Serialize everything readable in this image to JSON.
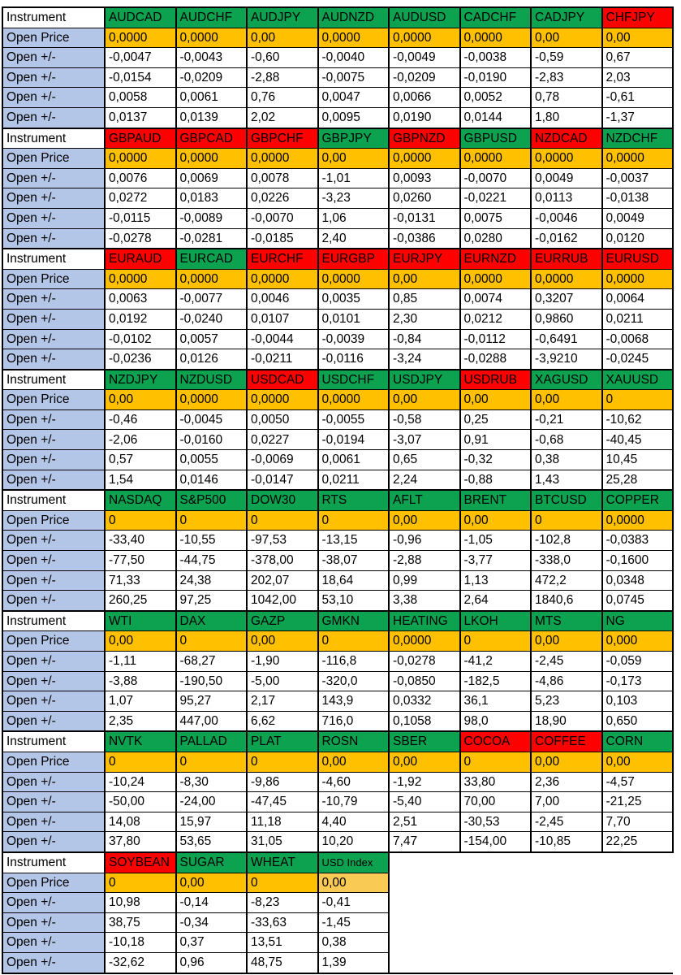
{
  "table": {
    "row_labels": {
      "instrument": "Instrument",
      "open_price": "Open Price",
      "open_delta": "Open +/-"
    },
    "colors": {
      "green": "#0CA24F",
      "red": "#FF0000",
      "orange": "#FFC000",
      "orange_light": "#F9CB55",
      "label_blue": "#B4C6E7"
    },
    "blocks": [
      {
        "instruments": [
          {
            "label": "AUDCAD",
            "color": "green"
          },
          {
            "label": "AUDCHF",
            "color": "green"
          },
          {
            "label": "AUDJPY",
            "color": "green"
          },
          {
            "label": "AUDNZD",
            "color": "green"
          },
          {
            "label": "AUDUSD",
            "color": "green"
          },
          {
            "label": "CADCHF",
            "color": "green"
          },
          {
            "label": "CADJPY",
            "color": "green"
          },
          {
            "label": "CHFJPY",
            "color": "red"
          }
        ],
        "open_price": [
          "0,0000",
          "0,0000",
          "0,00",
          "0,0000",
          "0,0000",
          "0,0000",
          "0,00",
          "0,00"
        ],
        "open_deltas": [
          [
            "-0,0047",
            "-0,0043",
            "-0,60",
            "-0,0040",
            "-0,0049",
            "-0,0038",
            "-0,59",
            "0,67"
          ],
          [
            "-0,0154",
            "-0,0209",
            "-2,88",
            "-0,0075",
            "-0,0209",
            "-0,0190",
            "-2,83",
            "2,03"
          ],
          [
            "0,0058",
            "0,0061",
            "0,76",
            "0,0047",
            "0,0066",
            "0,0052",
            "0,78",
            "-0,61"
          ],
          [
            "0,0137",
            "0,0139",
            "2,02",
            "0,0095",
            "0,0190",
            "0,0144",
            "1,80",
            "-1,37"
          ]
        ]
      },
      {
        "instruments": [
          {
            "label": "GBPAUD",
            "color": "red"
          },
          {
            "label": "GBPCAD",
            "color": "red"
          },
          {
            "label": "GBPCHF",
            "color": "red"
          },
          {
            "label": "GBPJPY",
            "color": "green"
          },
          {
            "label": "GBPNZD",
            "color": "red"
          },
          {
            "label": "GBPUSD",
            "color": "green"
          },
          {
            "label": "NZDCAD",
            "color": "red"
          },
          {
            "label": "NZDCHF",
            "color": "green"
          }
        ],
        "open_price": [
          "0,0000",
          "0,0000",
          "0,0000",
          "0,00",
          "0,0000",
          "0,0000",
          "0,0000",
          "0,0000"
        ],
        "open_deltas": [
          [
            "0,0076",
            "0,0069",
            "0,0078",
            "-1,01",
            "0,0093",
            "-0,0070",
            "0,0049",
            "-0,0037"
          ],
          [
            "0,0272",
            "0,0183",
            "0,0226",
            "-3,23",
            "0,0260",
            "-0,0221",
            "0,0113",
            "-0,0138"
          ],
          [
            "-0,0115",
            "-0,0089",
            "-0,0070",
            "1,06",
            "-0,0131",
            "0,0075",
            "-0,0046",
            "0,0049"
          ],
          [
            "-0,0278",
            "-0,0281",
            "-0,0185",
            "2,40",
            "-0,0386",
            "0,0280",
            "-0,0162",
            "0,0120"
          ]
        ]
      },
      {
        "instruments": [
          {
            "label": "EURAUD",
            "color": "red"
          },
          {
            "label": "EURCAD",
            "color": "green"
          },
          {
            "label": "EURCHF",
            "color": "red"
          },
          {
            "label": "EURGBP",
            "color": "red"
          },
          {
            "label": "EURJPY",
            "color": "red"
          },
          {
            "label": "EURNZD",
            "color": "red"
          },
          {
            "label": "EURRUB",
            "color": "red"
          },
          {
            "label": "EURUSD",
            "color": "red"
          }
        ],
        "open_price": [
          "0,0000",
          "0,0000",
          "0,0000",
          "0,0000",
          "0,00",
          "0,0000",
          "0,0000",
          "0,0000"
        ],
        "open_deltas": [
          [
            "0,0063",
            "-0,0077",
            "0,0046",
            "0,0035",
            "0,85",
            "0,0074",
            "0,3207",
            "0,0064"
          ],
          [
            "0,0192",
            "-0,0240",
            "0,0107",
            "0,0101",
            "2,30",
            "0,0212",
            "0,9860",
            "0,0211"
          ],
          [
            "-0,0102",
            "0,0057",
            "-0,0044",
            "-0,0039",
            "-0,84",
            "-0,0112",
            "-0,6491",
            "-0,0068"
          ],
          [
            "-0,0236",
            "0,0126",
            "-0,0211",
            "-0,0116",
            "-3,24",
            "-0,0288",
            "-3,9210",
            "-0,0245"
          ]
        ]
      },
      {
        "instruments": [
          {
            "label": "NZDJPY",
            "color": "green"
          },
          {
            "label": "NZDUSD",
            "color": "green"
          },
          {
            "label": "USDCAD",
            "color": "red"
          },
          {
            "label": "USDCHF",
            "color": "green"
          },
          {
            "label": "USDJPY",
            "color": "green"
          },
          {
            "label": "USDRUB",
            "color": "red"
          },
          {
            "label": "XAGUSD",
            "color": "green"
          },
          {
            "label": "XAUUSD",
            "color": "green"
          }
        ],
        "open_price": [
          "0,00",
          "0,0000",
          "0,0000",
          "0,0000",
          "0,00",
          "0,00",
          "0,00",
          "0"
        ],
        "open_deltas": [
          [
            "-0,46",
            "-0,0045",
            "0,0050",
            "-0,0055",
            "-0,58",
            "0,25",
            "-0,21",
            "-10,62"
          ],
          [
            "-2,06",
            "-0,0160",
            "0,0227",
            "-0,0194",
            "-3,07",
            "0,91",
            "-0,68",
            "-40,45"
          ],
          [
            "0,57",
            "0,0055",
            "-0,0069",
            "0,0061",
            "0,65",
            "-0,32",
            "0,38",
            "10,45"
          ],
          [
            "1,54",
            "0,0146",
            "-0,0147",
            "0,0211",
            "2,24",
            "-0,88",
            "1,43",
            "25,28"
          ]
        ]
      },
      {
        "instruments": [
          {
            "label": "NASDAQ",
            "color": "green"
          },
          {
            "label": "S&P500",
            "color": "green"
          },
          {
            "label": "DOW30",
            "color": "green"
          },
          {
            "label": "RTS",
            "color": "green"
          },
          {
            "label": "AFLT",
            "color": "green"
          },
          {
            "label": "BRENT",
            "color": "green"
          },
          {
            "label": "BTCUSD",
            "color": "green"
          },
          {
            "label": "COPPER",
            "color": "green"
          }
        ],
        "open_price": [
          "0",
          "0",
          "0",
          "0",
          "0,00",
          "0,00",
          "0",
          "0,0000"
        ],
        "open_deltas": [
          [
            "-33,40",
            "-10,55",
            "-97,53",
            "-13,15",
            "-0,96",
            "-1,05",
            "-102,8",
            "-0,0383"
          ],
          [
            "-77,50",
            "-44,75",
            "-378,00",
            "-38,07",
            "-2,88",
            "-3,77",
            "-338,0",
            "-0,1600"
          ],
          [
            "71,33",
            "24,38",
            "202,07",
            "18,64",
            "0,99",
            "1,13",
            "472,2",
            "0,0348"
          ],
          [
            "260,25",
            "97,25",
            "1042,00",
            "53,10",
            "3,38",
            "2,64",
            "1840,6",
            "0,0745"
          ]
        ]
      },
      {
        "instruments": [
          {
            "label": "WTI",
            "color": "green"
          },
          {
            "label": "DAX",
            "color": "green"
          },
          {
            "label": "GAZP",
            "color": "green"
          },
          {
            "label": "GMKN",
            "color": "green"
          },
          {
            "label": "HEATING",
            "color": "green"
          },
          {
            "label": "LKOH",
            "color": "green"
          },
          {
            "label": "MTS",
            "color": "green"
          },
          {
            "label": "NG",
            "color": "green"
          }
        ],
        "open_price": [
          "0,00",
          "0",
          "0,00",
          "0",
          "0,0000",
          "0",
          "0,00",
          "0,000"
        ],
        "open_deltas": [
          [
            "-1,11",
            "-68,27",
            "-1,90",
            "-116,8",
            "-0,0278",
            "-41,2",
            "-2,45",
            "-0,059"
          ],
          [
            "-3,88",
            "-190,50",
            "-5,00",
            "-320,0",
            "-0,0850",
            "-182,5",
            "-4,86",
            "-0,173"
          ],
          [
            "1,07",
            "95,27",
            "2,17",
            "143,9",
            "0,0332",
            "36,1",
            "5,23",
            "0,103"
          ],
          [
            "2,35",
            "447,00",
            "6,62",
            "716,0",
            "0,1058",
            "98,0",
            "18,90",
            "0,650"
          ]
        ]
      },
      {
        "instruments": [
          {
            "label": "NVTK",
            "color": "green"
          },
          {
            "label": "PALLAD",
            "color": "green"
          },
          {
            "label": "PLAT",
            "color": "green"
          },
          {
            "label": "ROSN",
            "color": "green"
          },
          {
            "label": "SBER",
            "color": "green"
          },
          {
            "label": "COCOA",
            "color": "red"
          },
          {
            "label": "COFFEE",
            "color": "red"
          },
          {
            "label": "CORN",
            "color": "green"
          }
        ],
        "open_price": [
          "0",
          "0",
          "0",
          "0,00",
          "0,00",
          "0",
          "0,00",
          "0,00"
        ],
        "open_deltas": [
          [
            "-10,24",
            "-8,30",
            "-9,86",
            "-4,60",
            "-1,92",
            "33,80",
            "2,36",
            "-4,57"
          ],
          [
            "-50,00",
            "-24,00",
            "-47,45",
            "-10,79",
            "-5,40",
            "70,00",
            "7,00",
            "-21,25"
          ],
          [
            "14,08",
            "15,97",
            "11,18",
            "4,40",
            "2,51",
            "-30,53",
            "-2,45",
            "7,70"
          ],
          [
            "37,80",
            "53,65",
            "31,05",
            "10,20",
            "7,47",
            "-154,00",
            "-10,85",
            "22,25"
          ]
        ]
      },
      {
        "instruments": [
          {
            "label": "SOYBEAN",
            "color": "red"
          },
          {
            "label": "SUGAR",
            "color": "green"
          },
          {
            "label": "WHEAT",
            "color": "green"
          },
          {
            "label": "USD Index",
            "color": "green",
            "small": true
          }
        ],
        "open_price": [
          "0",
          "0,00",
          "0",
          "0,00"
        ],
        "light_cells": [
          3
        ],
        "open_deltas": [
          [
            "10,98",
            "-0,14",
            "-8,23",
            "-0,41"
          ],
          [
            "38,75",
            "-0,34",
            "-33,63",
            "-1,45"
          ],
          [
            "-10,18",
            "0,37",
            "13,51",
            "0,38"
          ],
          [
            "-32,62",
            "0,96",
            "48,75",
            "1,39"
          ]
        ]
      }
    ]
  }
}
